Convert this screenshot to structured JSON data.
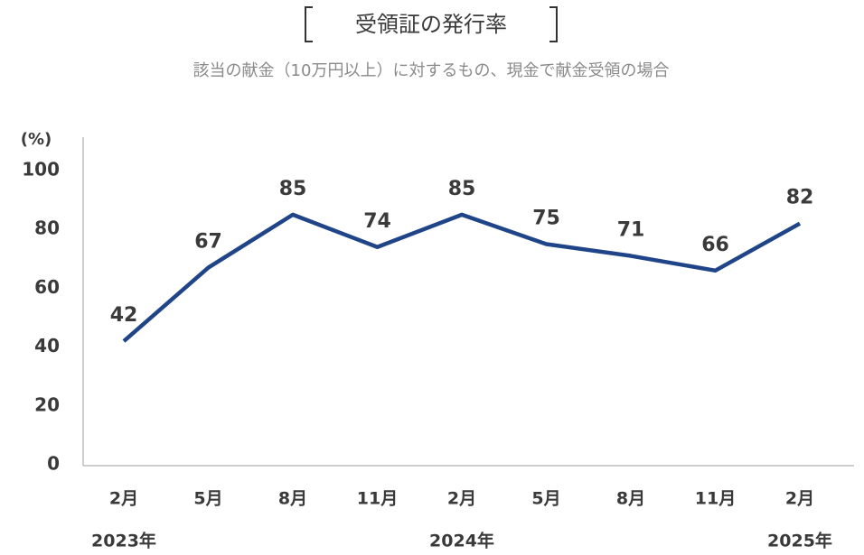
{
  "chart_data": {
    "type": "line",
    "title": "受領証の発行率",
    "subtitle": "該当の献金（10万円以上）に対するもの、現金で献金受領の場合",
    "y_axis_label": "(%)",
    "categories": [
      "2月",
      "5月",
      "8月",
      "11月",
      "2月",
      "5月",
      "8月",
      "11月",
      "2月"
    ],
    "year_labels": [
      "2023年",
      null,
      null,
      null,
      "2024年",
      null,
      null,
      null,
      "2025年"
    ],
    "values": [
      42,
      67,
      85,
      74,
      85,
      75,
      71,
      66,
      82
    ],
    "color": "#1f4588",
    "ylim": [
      0,
      100
    ],
    "yticks": [
      0,
      20,
      40,
      60,
      80,
      100
    ],
    "grid": false
  }
}
